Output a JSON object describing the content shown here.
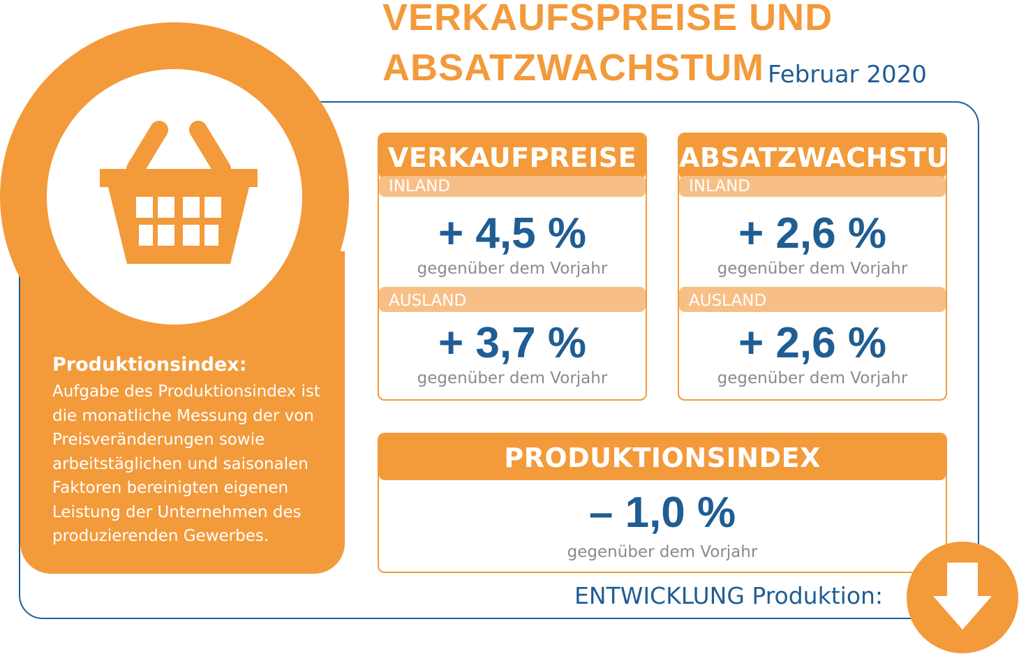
{
  "header": {
    "title_line1": "VERKAUFSPREISE UND",
    "title_line2": "ABSATZWACHSTUM",
    "subtitle": "Februar 2020"
  },
  "info": {
    "heading": "Produktionsindex:",
    "body": "Aufgabe des Produktionsindex ist die monatliche Messung der von Preisveränderungen sowie arbeitstäglichen und saisonalen Faktoren bereinigten eigenen Leistung der Unternehmen des produzierenden Gewerbes.",
    "icon": "shopping-basket-icon"
  },
  "verkaufspreise": {
    "title": "VERKAUFPREISE",
    "inland_label": "INLAND",
    "inland_value": "+ 4,5 %",
    "inland_caption": "gegenüber dem Vorjahr",
    "ausland_label": "AUSLAND",
    "ausland_value": "+ 3,7 %",
    "ausland_caption": "gegenüber dem Vorjahr"
  },
  "absatzwachstum": {
    "title": "ABSATZWACHSTUM",
    "inland_label": "INLAND",
    "inland_value": "+ 2,6 %",
    "inland_caption": "gegenüber dem Vorjahr",
    "ausland_label": "AUSLAND",
    "ausland_value": "+ 2,6 %",
    "ausland_caption": "gegenüber dem Vorjahr"
  },
  "produktionsindex": {
    "title": "PRODUKTIONSINDEX",
    "value": "– 1,0 %",
    "caption": "gegenüber dem Vorjahr"
  },
  "trend": {
    "label": "ENTWICKLUNG Produktion:",
    "icon": "arrow-down-icon"
  },
  "colors": {
    "orange": "#f39a3b",
    "light_orange": "#f7bf86",
    "blue": "#1f5d93",
    "gray": "#8a8a8a"
  }
}
